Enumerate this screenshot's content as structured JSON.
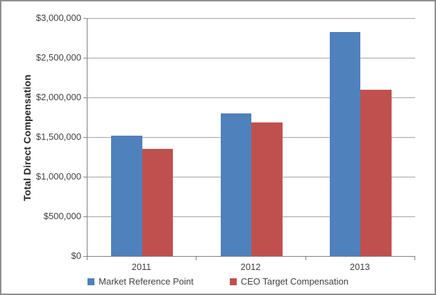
{
  "chart_data": {
    "type": "bar",
    "title": "",
    "categories": [
      "2011",
      "2012",
      "2013"
    ],
    "series": [
      {
        "name": "Market Reference Point",
        "color": "#4F81BD",
        "values": [
          1520000,
          1800000,
          2825000
        ]
      },
      {
        "name": "CEO Target Compensation",
        "color": "#C0504D",
        "values": [
          1350000,
          1680000,
          2100000
        ]
      }
    ],
    "xlabel": "",
    "ylabel": "Total Direct Compensation",
    "ylim": [
      0,
      3000000
    ],
    "ytick_step": 500000,
    "ytick_labels": [
      "$0",
      "$500,000",
      "$1,000,000",
      "$1,500,000",
      "$2,000,000",
      "$2,500,000",
      "$3,000,000"
    ],
    "grid": true,
    "legend_position": "bottom"
  }
}
